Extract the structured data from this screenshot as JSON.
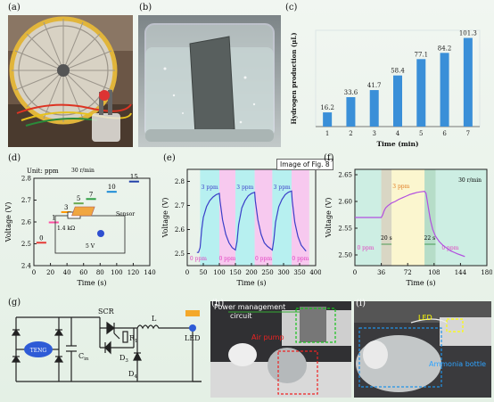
{
  "panel_labels": {
    "a": "(a)",
    "b": "(b)",
    "c": "(c)",
    "d": "(d)",
    "e": "(e)",
    "f": "(f)",
    "g": "(g)",
    "h": "(h)",
    "i": "(i)"
  },
  "tooltip": "Image of Fig. 8",
  "colors": {
    "bar": "#3a8fd8",
    "line_e": "#3a3ec8",
    "line_f": "#b24fe0",
    "cyan": "#b7f0f0",
    "pink": "#f7c9ef",
    "f_tan": "#d9d6c4",
    "f_yellow": "#fbf6cf",
    "f_teal": "#b6ddc8",
    "f_mint": "#cdeee3"
  },
  "circuit_d": {
    "unit": "Unit: ppm",
    "speed": "30 r/min",
    "resistor": "1.4 kΩ",
    "sensor": "Sensor",
    "voltage": "5 V"
  },
  "circuit_g": {
    "teng": "TENG",
    "scr": "SCR",
    "r1": "R",
    "r1_sub": "1",
    "l": "L",
    "d3": "D",
    "d3_sub": "3",
    "d4": "D",
    "d4_sub": "4",
    "cin": "C",
    "cin_sub": "in",
    "led": "LED"
  },
  "photo_h": {
    "pm": "Power management",
    "circuit": "circuit",
    "air_pump": "Air pump"
  },
  "photo_i": {
    "led": "LED",
    "bottle": "Ammonia bottle"
  },
  "chart_data": [
    {
      "type": "bar",
      "panel": "c",
      "categories": [
        "1",
        "2",
        "3",
        "4",
        "5",
        "6",
        "7"
      ],
      "values": [
        16.2,
        33.6,
        41.7,
        58.4,
        77.1,
        84.2,
        101.3
      ],
      "data_labels": [
        "16.2",
        "33.6",
        "41.7",
        "58.4",
        "77.1",
        "84.2",
        "101.3"
      ],
      "xlabel": "Time (min)",
      "ylabel": "Hydrogen production (μL)",
      "ylim": [
        0,
        110
      ],
      "yticks": []
    },
    {
      "type": "scatter",
      "panel": "d",
      "xlabel": "Time (s)",
      "ylabel": "Voltage (V)",
      "xlim": [
        0,
        140
      ],
      "ylim": [
        2.4,
        2.8
      ],
      "xticks": [
        "0",
        "20",
        "40",
        "60",
        "80",
        "100",
        "120",
        "140"
      ],
      "yticks": [
        "2.4",
        "2.5",
        "2.6",
        "2.7",
        "2.8"
      ],
      "levels": [
        {
          "label": "0",
          "x0": 3,
          "x1": 15,
          "y": 2.505,
          "color": "#e53935"
        },
        {
          "label": "1",
          "x0": 18,
          "x1": 30,
          "y": 2.598,
          "color": "#ff4fa3"
        },
        {
          "label": "3",
          "x0": 33,
          "x1": 45,
          "y": 2.645,
          "color": "#ff9800"
        },
        {
          "label": "5",
          "x0": 48,
          "x1": 60,
          "y": 2.685,
          "color": "#6aa84f"
        },
        {
          "label": "7",
          "x0": 63,
          "x1": 75,
          "y": 2.705,
          "color": "#2e9e44"
        },
        {
          "label": "10",
          "x0": 88,
          "x1": 100,
          "y": 2.738,
          "color": "#1c8bd6"
        },
        {
          "label": "15",
          "x0": 115,
          "x1": 127,
          "y": 2.785,
          "color": "#1f3ea8"
        }
      ]
    },
    {
      "type": "line",
      "panel": "e",
      "xlabel": "Time (s)",
      "ylabel": "Voltage (V)",
      "xlim": [
        0,
        400
      ],
      "ylim": [
        2.45,
        2.85
      ],
      "xticks": [
        "0",
        "50",
        "100",
        "150",
        "200",
        "250",
        "300",
        "350",
        "400"
      ],
      "yticks": [
        "2.5",
        "2.6",
        "2.7",
        "2.8"
      ],
      "bands": [
        {
          "x0": 40,
          "x1": 100,
          "label": "3 ppm",
          "color": "cyan"
        },
        {
          "x0": 100,
          "x1": 150,
          "label": "0 ppm",
          "color": "pink"
        },
        {
          "x0": 150,
          "x1": 210,
          "label": "3 ppm",
          "color": "cyan"
        },
        {
          "x0": 210,
          "x1": 265,
          "label": "0 ppm",
          "color": "pink"
        },
        {
          "x0": 265,
          "x1": 325,
          "label": "3 ppm",
          "color": "cyan"
        },
        {
          "x0": 325,
          "x1": 380,
          "label": "0 ppm",
          "color": "pink"
        }
      ],
      "start_label": "0 ppm",
      "series": [
        {
          "x": [
            30,
            35,
            40,
            45,
            50,
            60,
            70,
            80,
            90,
            100,
            102,
            110,
            120,
            130,
            140,
            150,
            155,
            160,
            170,
            180,
            190,
            200,
            210,
            212,
            220,
            230,
            240,
            250,
            265,
            270,
            275,
            285,
            295,
            305,
            315,
            325,
            327,
            335,
            345,
            355,
            370
          ],
          "y": [
            2.505,
            2.505,
            2.525,
            2.6,
            2.65,
            2.695,
            2.72,
            2.735,
            2.745,
            2.75,
            2.72,
            2.64,
            2.58,
            2.545,
            2.525,
            2.515,
            2.55,
            2.62,
            2.69,
            2.72,
            2.74,
            2.75,
            2.755,
            2.72,
            2.64,
            2.58,
            2.545,
            2.53,
            2.515,
            2.56,
            2.63,
            2.695,
            2.725,
            2.745,
            2.755,
            2.76,
            2.72,
            2.63,
            2.57,
            2.535,
            2.51
          ]
        }
      ]
    },
    {
      "type": "line",
      "panel": "f",
      "xlabel": "Time (s)",
      "ylabel": "Voltage (V)",
      "speed": "30 r/min",
      "xlim": [
        0,
        180
      ],
      "ylim": [
        2.48,
        2.66
      ],
      "xticks": [
        "0",
        "36",
        "72",
        "108",
        "144",
        "180"
      ],
      "yticks": [
        "2.50",
        "2.55",
        "2.60",
        "2.65"
      ],
      "bands": [
        {
          "x0": 36,
          "x1": 50,
          "color": "f_tan"
        },
        {
          "x0": 50,
          "x1": 95,
          "color": "f_yellow"
        },
        {
          "x0": 95,
          "x1": 110,
          "color": "f_teal"
        }
      ],
      "annotations": {
        "left": "0 ppm",
        "mid": "3 ppm",
        "right": "0 ppm",
        "rise": "20 s",
        "fall": "22 s"
      },
      "series": [
        {
          "x": [
            0,
            36,
            38,
            40,
            42,
            45,
            50,
            55,
            60,
            65,
            70,
            75,
            80,
            85,
            90,
            95,
            97,
            100,
            103,
            106,
            110,
            115,
            120,
            125,
            130,
            135,
            140,
            144,
            150
          ],
          "y": [
            2.57,
            2.57,
            2.575,
            2.583,
            2.588,
            2.592,
            2.597,
            2.6,
            2.604,
            2.607,
            2.61,
            2.613,
            2.615,
            2.617,
            2.618,
            2.619,
            2.615,
            2.59,
            2.565,
            2.548,
            2.535,
            2.525,
            2.518,
            2.513,
            2.508,
            2.505,
            2.502,
            2.5,
            2.497
          ]
        }
      ]
    }
  ]
}
